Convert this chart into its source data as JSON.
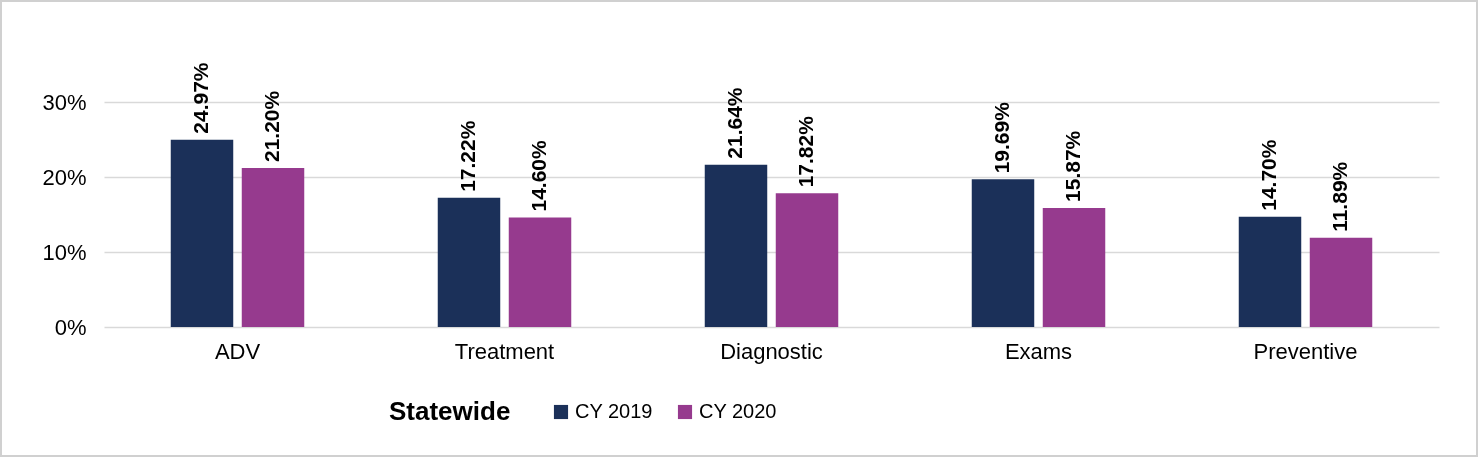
{
  "chart_data": {
    "type": "bar",
    "categories": [
      "ADV",
      "Treatment",
      "Diagnostic",
      "Exams",
      "Preventive"
    ],
    "series": [
      {
        "name": "CY 2019",
        "color": "#1b3059",
        "values": [
          24.97,
          17.22,
          21.64,
          19.69,
          14.7
        ],
        "value_labels": [
          "24.97%",
          "17.22%",
          "21.64%",
          "19.69%",
          "14.70%"
        ]
      },
      {
        "name": "CY 2020",
        "color": "#963a8e",
        "values": [
          21.2,
          14.6,
          17.82,
          15.87,
          11.89
        ],
        "value_labels": [
          "21.20%",
          "14.60%",
          "17.82%",
          "15.87%",
          "11.89%"
        ]
      }
    ],
    "legend_title": "Statewide",
    "legend": "bottom",
    "ylim": [
      0,
      30
    ],
    "yticks": [
      {
        "value": 0,
        "label": "0%"
      },
      {
        "value": 10,
        "label": "10%"
      },
      {
        "value": 20,
        "label": "20%"
      },
      {
        "value": 30,
        "label": "30%"
      }
    ],
    "grid": "y"
  }
}
